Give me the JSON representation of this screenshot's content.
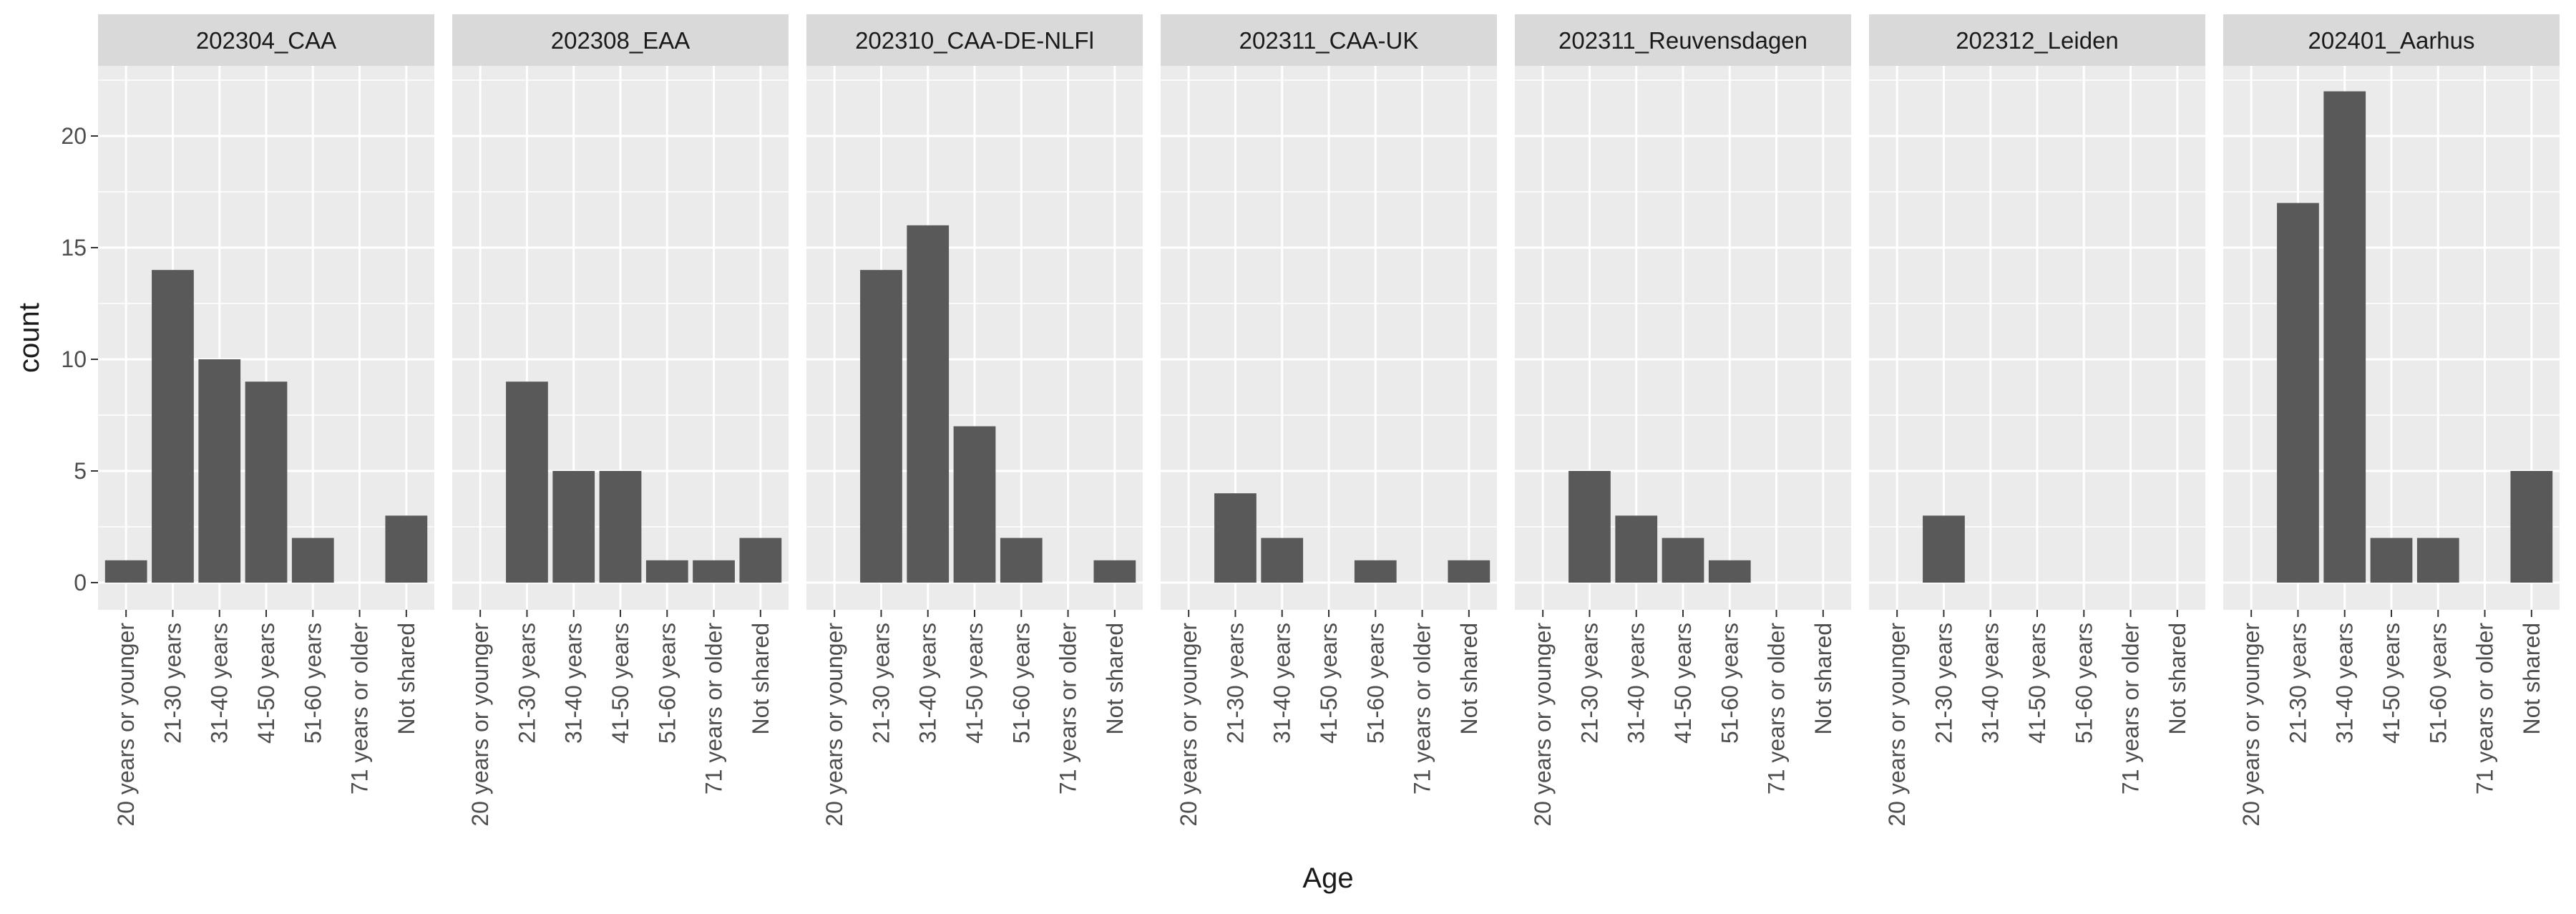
{
  "chart_data": {
    "type": "bar",
    "facet_type": "small-multiples",
    "xlabel": "Age",
    "ylabel": "count",
    "ylim": [
      0,
      23
    ],
    "yticks": [
      0,
      5,
      10,
      15,
      20
    ],
    "grid": true,
    "categories": [
      "20 years or younger",
      "21-30 years",
      "31-40 years",
      "41-50 years",
      "51-60 years",
      "71 years or older",
      "Not shared"
    ],
    "facets": [
      {
        "title": "202304_CAA",
        "values": [
          1,
          14,
          10,
          9,
          2,
          0,
          3
        ]
      },
      {
        "title": "202308_EAA",
        "values": [
          0,
          9,
          5,
          5,
          1,
          1,
          2
        ]
      },
      {
        "title": "202310_CAA-DE-NLFl",
        "values": [
          0,
          14,
          16,
          7,
          2,
          0,
          1
        ]
      },
      {
        "title": "202311_CAA-UK",
        "values": [
          0,
          4,
          2,
          0,
          1,
          0,
          1
        ]
      },
      {
        "title": "202311_Reuvensdagen",
        "values": [
          0,
          5,
          3,
          2,
          1,
          0,
          0
        ]
      },
      {
        "title": "202312_Leiden",
        "values": [
          0,
          3,
          0,
          0,
          0,
          0,
          0
        ]
      },
      {
        "title": "202401_Aarhus",
        "values": [
          0,
          17,
          22,
          2,
          2,
          0,
          5
        ]
      }
    ],
    "colors": {
      "bar": "#595959",
      "panel_bg": "#ebebeb",
      "strip_bg": "#d9d9d9",
      "grid": "#ffffff",
      "text": "#1a1a1a",
      "tick_text": "#4d4d4d"
    }
  }
}
